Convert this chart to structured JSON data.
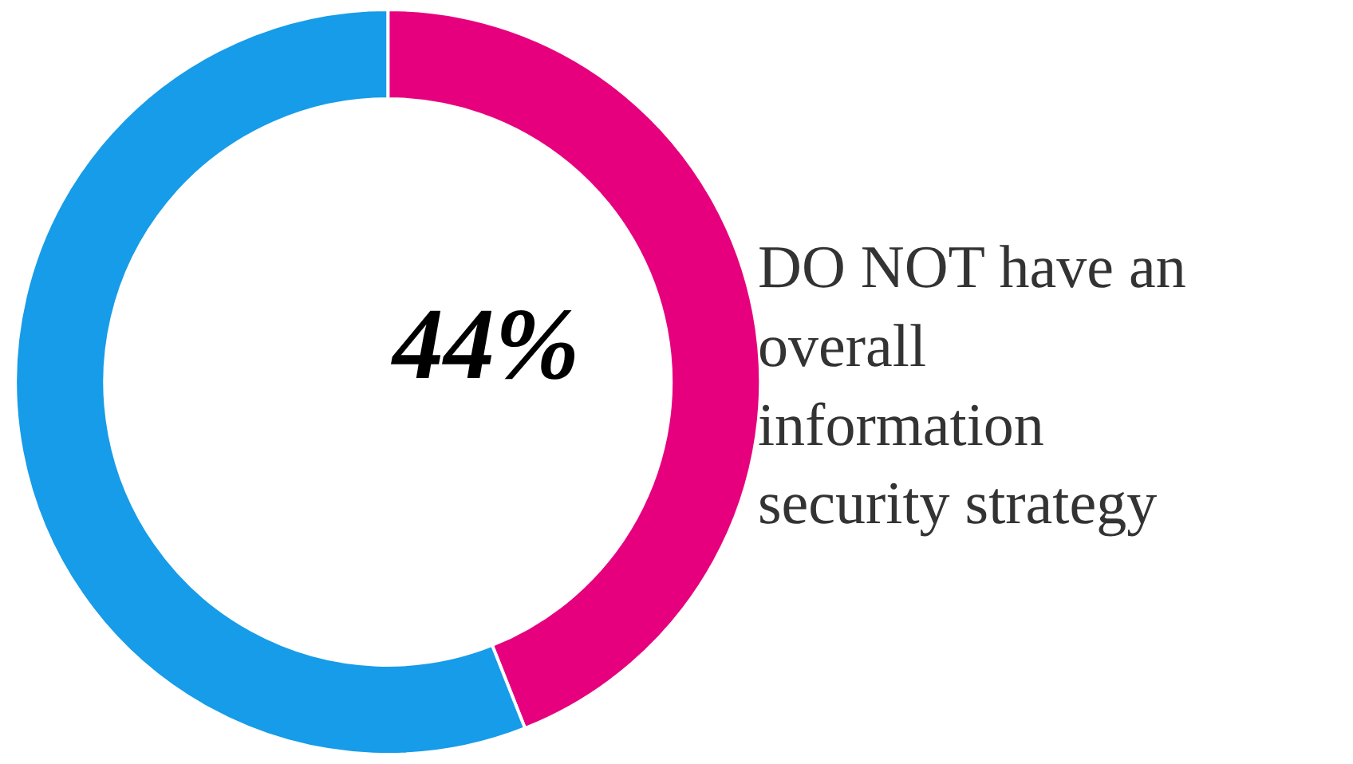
{
  "chart_data": {
    "type": "donut",
    "categories": [
      "DO NOT have an overall information security strategy",
      null
    ],
    "values": [
      44,
      56
    ],
    "colors": [
      "#e6007e",
      "#169ce8"
    ],
    "value_labels": [
      "44%",
      null
    ],
    "legend": false
  }
}
